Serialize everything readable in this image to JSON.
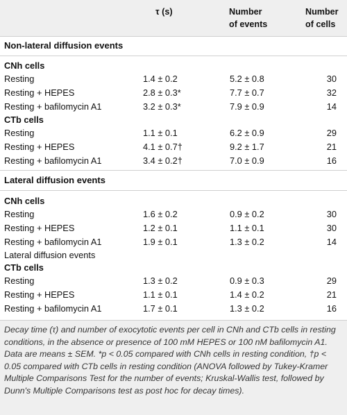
{
  "header": {
    "tau": "τ (s)",
    "events_line1": "Number",
    "events_line2": "of events",
    "cells_line1": "Number",
    "cells_line2": "of cells"
  },
  "sections": [
    {
      "title": "Non-lateral diffusion events",
      "groups": [
        {
          "title": "CNh cells",
          "rows": [
            {
              "label": "Resting",
              "tau": "1.4 ± 0.2",
              "events": "5.2 ± 0.8",
              "cells": "30"
            },
            {
              "label": "Resting + HEPES",
              "tau": "2.8 ± 0.3*",
              "events": "7.7 ± 0.7",
              "cells": "32"
            },
            {
              "label": "Resting + bafilomycin A1",
              "tau": "3.2 ± 0.3*",
              "events": "7.9 ± 0.9",
              "cells": "14"
            }
          ]
        },
        {
          "title": "CTb cells",
          "rows": [
            {
              "label": "Resting",
              "tau": "1.1 ± 0.1",
              "events": "6.2 ± 0.9",
              "cells": "29"
            },
            {
              "label": "Resting + HEPES",
              "tau": "4.1 ± 0.7†",
              "events": "9.2 ± 1.7",
              "cells": "21"
            },
            {
              "label": "Resting + bafilomycin A1",
              "tau": "3.4 ± 0.2†",
              "events": "7.0 ± 0.9",
              "cells": "16"
            }
          ]
        }
      ]
    },
    {
      "title": "Lateral diffusion events",
      "groups": [
        {
          "title": "CNh cells",
          "rows": [
            {
              "label": "Resting",
              "tau": "1.6 ± 0.2",
              "events": "0.9 ± 0.2",
              "cells": "30"
            },
            {
              "label": "Resting + HEPES",
              "tau": "1.2 ± 0.1",
              "events": "1.1 ± 0.1",
              "cells": "30"
            },
            {
              "label": "Resting + bafilomycin A1",
              "tau": "1.9 ± 0.1",
              "events": "1.3 ± 0.2",
              "cells": "14"
            }
          ]
        },
        {
          "title": "CTb cells",
          "rows": [
            {
              "label": "Resting",
              "tau": "1.3 ± 0.2",
              "events": "0.9 ± 0.3",
              "cells": "29"
            },
            {
              "label": "Resting + HEPES",
              "tau": "1.1 ± 0.1",
              "events": "1.4 ± 0.2",
              "cells": "21"
            },
            {
              "label": "Resting + bafilomycin A1",
              "tau": "1.7 ± 0.1",
              "events": "1.3 ± 0.2",
              "cells": "16"
            }
          ]
        }
      ]
    }
  ],
  "inline_label": "Lateral diffusion events",
  "caption": "Decay time (τ) and number of exocytotic events per cell in CNh and CTb cells in resting conditions, in the absence or presence of 100 mM HEPES or 100 nM bafilomycin A1. Data are means ± SEM. *p < 0.05 compared with CNh cells in resting condition, †p < 0.05 compared with CTb cells in resting condition (ANOVA followed by Tukey-Kramer Multiple Comparisons Test for the number of events; Kruskal-Wallis test, followed by Dunn's Multiple Comparisons test as post hoc for decay times)."
}
